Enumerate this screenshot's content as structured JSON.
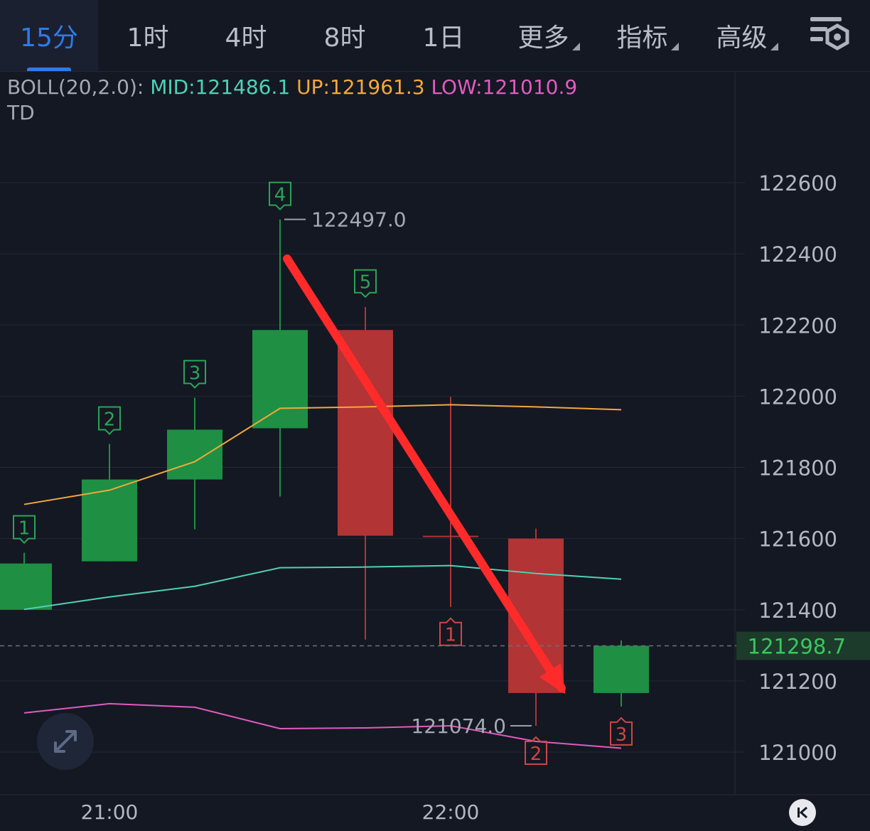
{
  "tabs": [
    {
      "label": "15分",
      "active": true
    },
    {
      "label": "1时",
      "active": false
    },
    {
      "label": "4时",
      "active": false
    },
    {
      "label": "8时",
      "active": false
    },
    {
      "label": "1日",
      "active": false
    },
    {
      "label": "更多",
      "active": false,
      "dropdown": true
    },
    {
      "label": "指标",
      "active": false,
      "dropdown": true
    },
    {
      "label": "高级",
      "active": false,
      "dropdown": true
    }
  ],
  "legend": {
    "indicator": "BOLL(20,2.0):",
    "mid": "MID:121486.1",
    "up": "UP:121961.3",
    "low": "LOW:121010.9",
    "td": "TD"
  },
  "icons": {
    "settings": "chart-settings-icon",
    "expand": "expand-arrows-icon",
    "jump": "jump-to-latest-icon"
  },
  "colors": {
    "up_candle": "#1f8f43",
    "down_candle": "#b23434",
    "boll_mid": "#4fd1b8",
    "boll_up": "#f2a93b",
    "boll_low": "#e05bc0",
    "trend_arrow": "#ff2b2b",
    "price_tag": "#37c85e"
  },
  "chart_data": {
    "type": "candlestick",
    "y_ticks": [
      "122600",
      "122400",
      "122200",
      "122000",
      "121800",
      "121600",
      "121400",
      "121200",
      "121000"
    ],
    "ylim": [
      120880,
      122880
    ],
    "x_ticks": [
      "21:00",
      "22:00"
    ],
    "current_price": "121298.7",
    "high_annotation": "122497.0",
    "low_annotation": "121074.0",
    "candles": [
      {
        "open": 121400,
        "high": 121560,
        "low": 121400,
        "close": 121530,
        "td": "1"
      },
      {
        "open": 121536,
        "high": 121866,
        "low": 121536,
        "close": 121766,
        "td": "2"
      },
      {
        "open": 121766,
        "high": 121996,
        "low": 121626,
        "close": 121906,
        "td": "3"
      },
      {
        "open": 121910,
        "high": 122497,
        "low": 121718,
        "close": 122186,
        "td": "4"
      },
      {
        "open": 122186,
        "high": 122251,
        "low": 121316,
        "close": 121608,
        "td": "5"
      },
      {
        "open": 121608,
        "high": 121998,
        "low": 121408,
        "close": 121606,
        "td": "1"
      },
      {
        "open": 121600,
        "high": 121628,
        "low": 121074,
        "close": 121166,
        "td": "2"
      },
      {
        "open": 121166,
        "high": 121314,
        "low": 121128,
        "close": 121298.7,
        "td": "3"
      }
    ],
    "boll_up": [
      121696,
      121736,
      121816,
      121966,
      121970,
      121976,
      121970,
      121962
    ],
    "boll_mid": [
      121401,
      121436,
      121466,
      121518,
      121520,
      121524,
      121502,
      121486
    ],
    "boll_low": [
      121110,
      121136,
      121126,
      121066,
      121068,
      121074,
      121030,
      121011
    ]
  }
}
